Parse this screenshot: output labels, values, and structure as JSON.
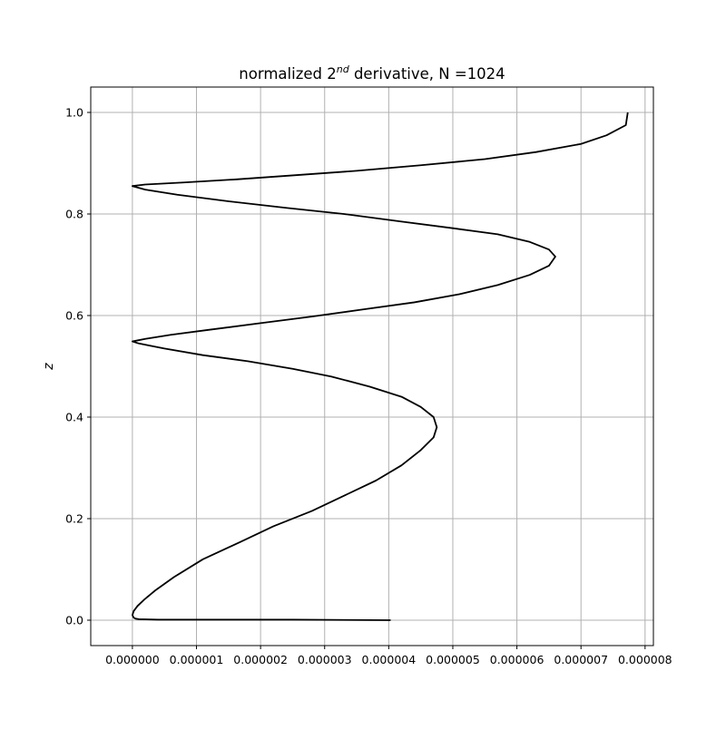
{
  "chart_data": {
    "type": "line",
    "title": "normalized 2",
    "title_superscript": "nd",
    "title_suffix": " derivative, N =1024",
    "xlabel": "",
    "ylabel": "z",
    "xlim": [
      -6.5e-07,
      8.13e-06
    ],
    "ylim": [
      -0.05,
      1.05
    ],
    "x_ticks": [
      0,
      1e-06,
      2e-06,
      3e-06,
      4e-06,
      5e-06,
      6e-06,
      7e-06,
      8e-06
    ],
    "x_tick_labels": [
      "0.000000",
      "0.000001",
      "0.000002",
      "0.000003",
      "0.000004",
      "0.000005",
      "0.000006",
      "0.000007",
      "0.000008"
    ],
    "y_ticks": [
      0.0,
      0.2,
      0.4,
      0.6,
      0.8,
      1.0
    ],
    "y_tick_labels": [
      "0.0",
      "0.2",
      "0.4",
      "0.6",
      "0.8",
      "1.0"
    ],
    "grid": true,
    "line_color": "#000000",
    "series": [
      {
        "x": [
          4.03e-06,
          2.5e-06,
          1.2e-06,
          4e-07,
          1e-07,
          5e-08,
          2e-08,
          0.0,
          2e-08,
          8e-08,
          1.8e-07,
          3.5e-07,
          6.5e-07,
          1.1e-06,
          1.7e-06,
          2.2e-06,
          2.8e-06,
          3.3e-06,
          3.8e-06,
          4.2e-06,
          4.5e-06,
          4.7e-06,
          4.75e-06,
          4.7e-06,
          4.5e-06,
          4.2e-06,
          3.7e-06,
          3.1e-06,
          2.5e-06,
          1.8e-06,
          1.1e-06,
          5e-07,
          1e-07,
          0.0,
          2e-07,
          6e-07,
          1.2e-06,
          2e-06,
          2.8e-06,
          3.6e-06,
          4.4e-06,
          5.1e-06,
          5.7e-06,
          6.2e-06,
          6.5e-06,
          6.6e-06,
          6.5e-06,
          6.2e-06,
          5.7e-06,
          5e-06,
          4.2e-06,
          3.3e-06,
          2.4e-06,
          1.5e-06,
          7e-07,
          2e-07,
          0.0,
          2e-07,
          8e-07,
          1.6e-06,
          2.5e-06,
          3.5e-06,
          4.5e-06,
          5.5e-06,
          6.3e-06,
          7e-06,
          7.4e-06,
          7.7e-06,
          7.73e-06
        ],
        "z": [
          0.0,
          0.001,
          0.001,
          0.001,
          0.002,
          0.003,
          0.005,
          0.01,
          0.018,
          0.028,
          0.04,
          0.058,
          0.085,
          0.12,
          0.155,
          0.185,
          0.215,
          0.245,
          0.275,
          0.305,
          0.335,
          0.36,
          0.38,
          0.4,
          0.42,
          0.44,
          0.46,
          0.48,
          0.495,
          0.51,
          0.522,
          0.535,
          0.545,
          0.549,
          0.554,
          0.562,
          0.572,
          0.585,
          0.598,
          0.612,
          0.626,
          0.642,
          0.66,
          0.68,
          0.698,
          0.716,
          0.73,
          0.745,
          0.76,
          0.772,
          0.785,
          0.8,
          0.812,
          0.825,
          0.838,
          0.848,
          0.855,
          0.858,
          0.862,
          0.868,
          0.876,
          0.885,
          0.896,
          0.908,
          0.922,
          0.938,
          0.955,
          0.975,
          1.0
        ]
      }
    ]
  }
}
